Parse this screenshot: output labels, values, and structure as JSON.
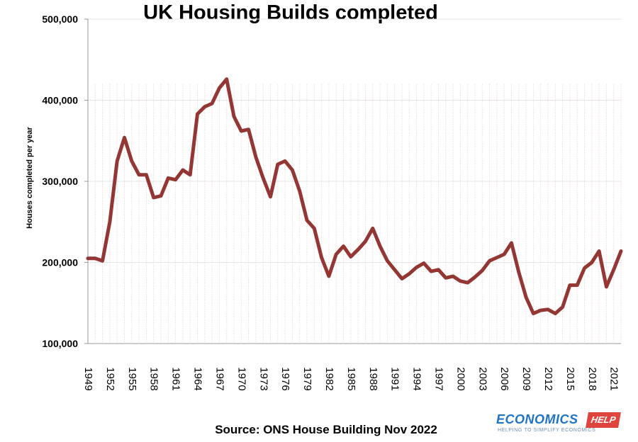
{
  "chart_data": {
    "type": "line",
    "title": "UK Housing Builds completed",
    "ylabel": "Houses completed per year",
    "xlabel": "",
    "source": "Source: ONS House Building Nov 2022",
    "ylim": [
      100000,
      500000
    ],
    "y_ticks": [
      "100,000",
      "200,000",
      "300,000",
      "400,000",
      "500,000"
    ],
    "y_tick_values": [
      100000,
      200000,
      300000,
      400000,
      500000
    ],
    "x_ticks": [
      "1949",
      "1952",
      "1955",
      "1958",
      "1961",
      "1964",
      "1967",
      "1970",
      "1973",
      "1976",
      "1979",
      "1982",
      "1985",
      "1988",
      "1991",
      "1994",
      "1997",
      "2000",
      "2003",
      "2006",
      "2009",
      "2012",
      "2015",
      "2018",
      "2021"
    ],
    "x": [
      1949,
      1950,
      1951,
      1952,
      1953,
      1954,
      1955,
      1956,
      1957,
      1958,
      1959,
      1960,
      1961,
      1962,
      1963,
      1964,
      1965,
      1966,
      1967,
      1968,
      1969,
      1970,
      1971,
      1972,
      1973,
      1974,
      1975,
      1976,
      1977,
      1978,
      1979,
      1980,
      1981,
      1982,
      1983,
      1984,
      1985,
      1986,
      1987,
      1988,
      1989,
      1990,
      1991,
      1992,
      1993,
      1994,
      1995,
      1996,
      1997,
      1998,
      1999,
      2000,
      2001,
      2002,
      2003,
      2004,
      2005,
      2006,
      2007,
      2008,
      2009,
      2010,
      2011,
      2012,
      2013,
      2014,
      2015,
      2016,
      2017,
      2018,
      2019,
      2020,
      2021,
      2022
    ],
    "series": [
      {
        "values": [
          205000,
          205000,
          202000,
          250000,
          325000,
          354000,
          325000,
          308000,
          308000,
          280000,
          282000,
          304000,
          302000,
          314000,
          308000,
          383000,
          392000,
          396000,
          415000,
          426000,
          380000,
          362000,
          364000,
          330000,
          304000,
          281000,
          321000,
          325000,
          314000,
          288000,
          252000,
          242000,
          206000,
          183000,
          210000,
          220000,
          207000,
          216000,
          226000,
          242000,
          220000,
          202000,
          191000,
          180000,
          186000,
          194000,
          199000,
          189000,
          191000,
          181000,
          183000,
          177000,
          175000,
          182000,
          190000,
          202000,
          206000,
          210000,
          224000,
          188000,
          157000,
          137000,
          141000,
          142000,
          137000,
          145000,
          172000,
          172000,
          193000,
          200000,
          214000,
          170000,
          191000,
          214000
        ],
        "color": "#943634"
      }
    ],
    "grid": "vertical dotted",
    "logo_text": "ECONOMICS",
    "logo_badge": "HELP",
    "logo_tagline": "HELPING TO SIMPLIFY ECONOMICS"
  }
}
